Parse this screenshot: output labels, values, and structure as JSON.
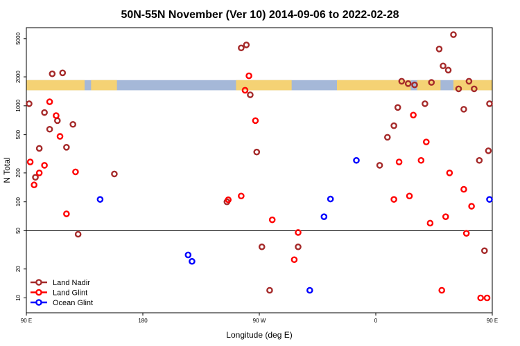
{
  "chart_data": {
    "type": "scatter",
    "title": "50N-55N November (Ver 10)   2014-09-06 to 2022-02-28",
    "xlabel": "Longitude (deg E)",
    "ylabel": "N Total",
    "xlim": [
      90,
      450
    ],
    "ylim": [
      7,
      6500
    ],
    "y_scale": "log",
    "x_ticks": [
      {
        "value": 90,
        "label": "90 E"
      },
      {
        "value": 180,
        "label": "180"
      },
      {
        "value": 270,
        "label": "90 W"
      },
      {
        "value": 360,
        "label": "0"
      },
      {
        "value": 450,
        "label": "90 E"
      }
    ],
    "y_ticks": [
      {
        "value": 10,
        "label": "10"
      },
      {
        "value": 20,
        "label": "20"
      },
      {
        "value": 50,
        "label": "50"
      },
      {
        "value": 100,
        "label": "100"
      },
      {
        "value": 200,
        "label": "200"
      },
      {
        "value": 500,
        "label": "500"
      },
      {
        "value": 1000,
        "label": "1000"
      },
      {
        "value": 2000,
        "label": "2000"
      },
      {
        "value": 5000,
        "label": "5000"
      }
    ],
    "reference_line_y": 50,
    "land_ocean_strip": {
      "y_range": [
        1450,
        1850
      ],
      "ocean_color": "#a5b8d8",
      "land_color": "#f5d274",
      "land_longitudes": [
        [
          90,
          135
        ],
        [
          140,
          160
        ],
        [
          252,
          295
        ],
        [
          330,
          387
        ],
        [
          392,
          410
        ],
        [
          420,
          450
        ]
      ]
    },
    "legend": {
      "position": "bottom-left",
      "entries": [
        "Land Nadir",
        "Land Glint",
        "Ocean Glint"
      ]
    },
    "series": [
      {
        "name": "Land Nadir",
        "color": "#a52a2a",
        "points": [
          [
            92,
            1050
          ],
          [
            97,
            180
          ],
          [
            100,
            360
          ],
          [
            104,
            850
          ],
          [
            108,
            570
          ],
          [
            110,
            2150
          ],
          [
            114,
            700
          ],
          [
            118,
            2200
          ],
          [
            121,
            370
          ],
          [
            126,
            640
          ],
          [
            130,
            46
          ],
          [
            158,
            195
          ],
          [
            245,
            100
          ],
          [
            256,
            4000
          ],
          [
            260,
            4300
          ],
          [
            263,
            1300
          ],
          [
            268,
            330
          ],
          [
            272,
            34
          ],
          [
            278,
            12
          ],
          [
            300,
            34
          ],
          [
            363,
            240
          ],
          [
            369,
            470
          ],
          [
            374,
            620
          ],
          [
            377,
            960
          ],
          [
            380,
            1800
          ],
          [
            385,
            1700
          ],
          [
            390,
            1650
          ],
          [
            398,
            1050
          ],
          [
            403,
            1750
          ],
          [
            409,
            3900
          ],
          [
            412,
            2600
          ],
          [
            416,
            2350
          ],
          [
            420,
            5500
          ],
          [
            424,
            1500
          ],
          [
            428,
            920
          ],
          [
            432,
            1800
          ],
          [
            436,
            1500
          ],
          [
            440,
            270
          ],
          [
            444,
            31
          ],
          [
            447,
            340
          ],
          [
            450,
            1050
          ]
        ]
      },
      {
        "name": "Land Glint",
        "color": "#ff0000",
        "points": [
          [
            93,
            260
          ],
          [
            96,
            150
          ],
          [
            100,
            200
          ],
          [
            104,
            240
          ],
          [
            108,
            1100
          ],
          [
            113,
            790
          ],
          [
            116,
            480
          ],
          [
            121,
            75
          ],
          [
            128,
            205
          ],
          [
            246,
            105
          ],
          [
            256,
            115
          ],
          [
            259,
            1450
          ],
          [
            262,
            2050
          ],
          [
            267,
            700
          ],
          [
            280,
            65
          ],
          [
            297,
            25
          ],
          [
            300,
            48
          ],
          [
            374,
            106
          ],
          [
            378,
            260
          ],
          [
            386,
            115
          ],
          [
            389,
            800
          ],
          [
            395,
            270
          ],
          [
            399,
            420
          ],
          [
            402,
            60
          ],
          [
            411,
            12
          ],
          [
            414,
            70
          ],
          [
            417,
            200
          ],
          [
            428,
            135
          ],
          [
            430,
            47
          ],
          [
            434,
            90
          ],
          [
            441,
            10
          ],
          [
            446,
            10
          ]
        ]
      },
      {
        "name": "Ocean Glint",
        "color": "#0000ff",
        "points": [
          [
            147,
            106
          ],
          [
            215,
            28
          ],
          [
            218,
            24
          ],
          [
            309,
            12
          ],
          [
            320,
            70
          ],
          [
            325,
            107
          ],
          [
            345,
            270
          ],
          [
            452,
            106
          ]
        ]
      }
    ]
  }
}
